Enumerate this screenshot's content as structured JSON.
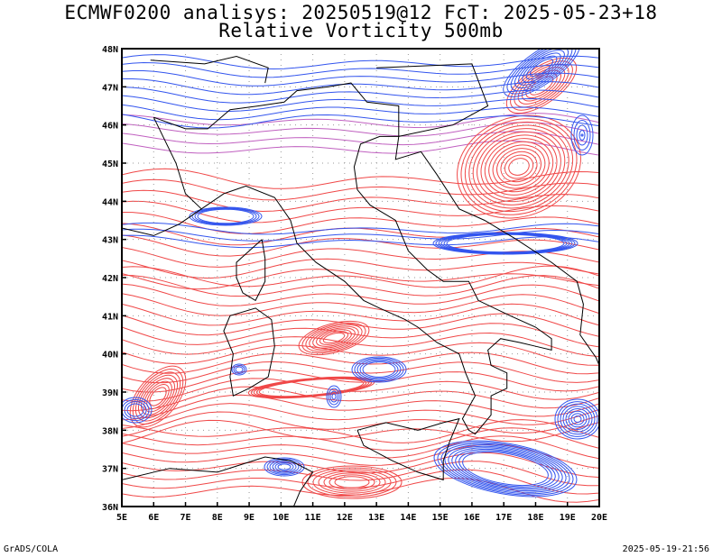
{
  "header": {
    "line1": "ECMWF0200 analisys: 20250519@12 FcT: 2025-05-23+18",
    "line2": "Relative Vorticity 500mb"
  },
  "footer": {
    "left": "GrADS/COLA",
    "right": "2025-05-19-21:56"
  },
  "map": {
    "lon_range": [
      5,
      20
    ],
    "lat_range": [
      36,
      48
    ],
    "lon_ticks": [
      "5E",
      "6E",
      "7E",
      "8E",
      "9E",
      "10E",
      "11E",
      "12E",
      "13E",
      "14E",
      "15E",
      "16E",
      "17E",
      "18E",
      "19E",
      "20E"
    ],
    "lat_ticks": [
      "36N",
      "37N",
      "38N",
      "39N",
      "40N",
      "41N",
      "42N",
      "43N",
      "44N",
      "45N",
      "46N",
      "47N",
      "48N"
    ],
    "colors": {
      "positive": "#f04848",
      "negative": "#3355ee",
      "zero": "#c060c0",
      "land": "#000000"
    }
  }
}
